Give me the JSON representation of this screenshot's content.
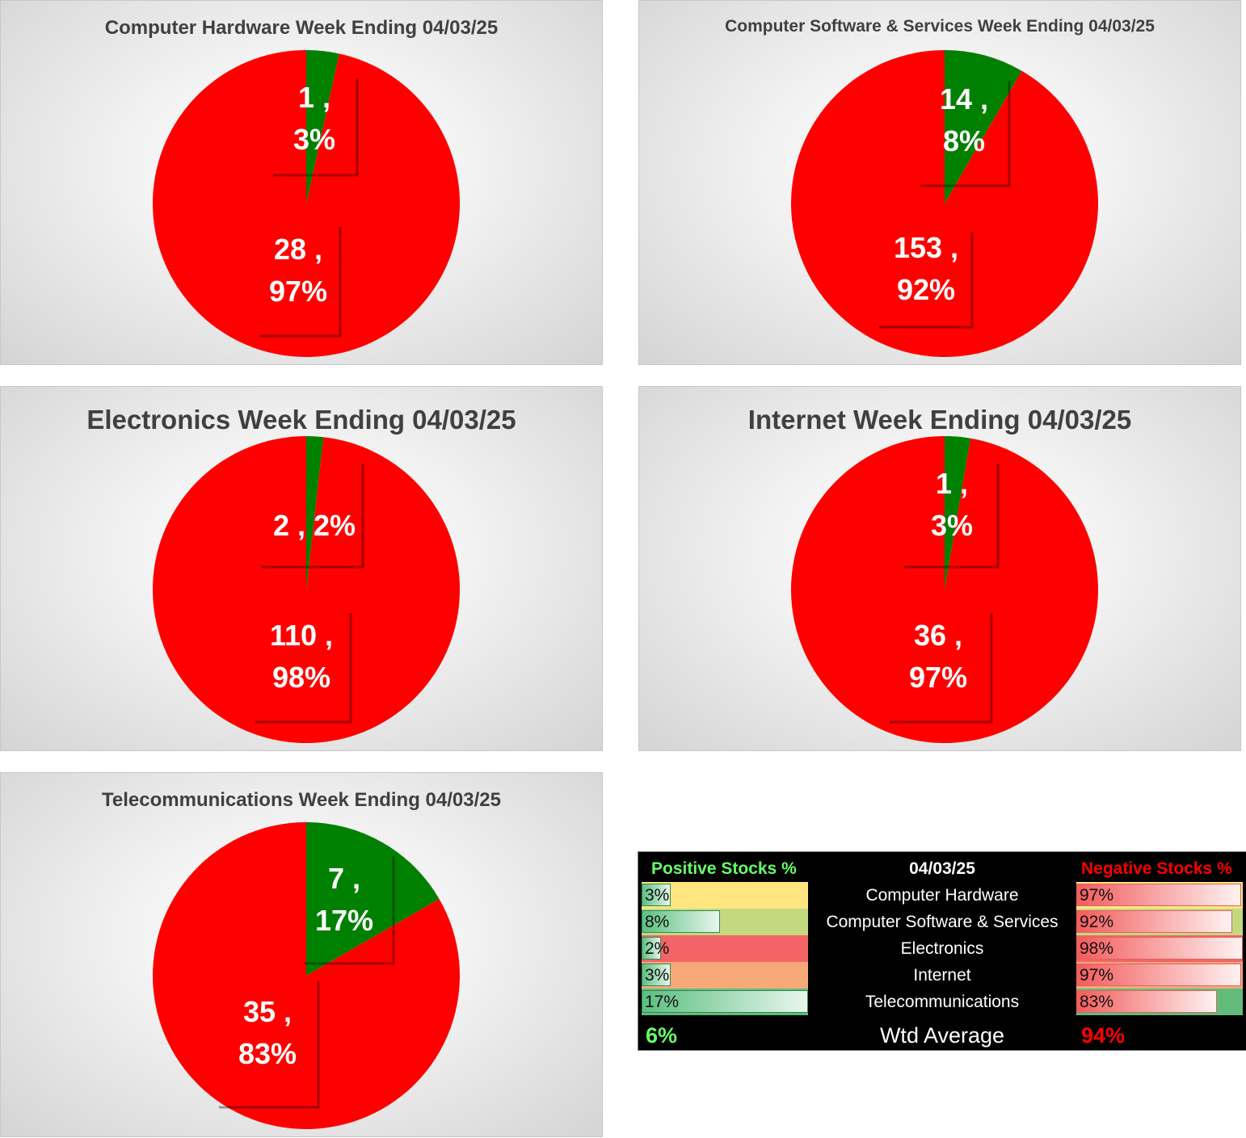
{
  "chart_data": [
    {
      "type": "pie",
      "title": "Computer Hardware Week Ending 04/03/25",
      "slices": [
        {
          "label": "Positive",
          "value": 1,
          "percent": "3%",
          "color": "#008000"
        },
        {
          "label": "Negative",
          "value": 28,
          "percent": "97%",
          "color": "#ff0000"
        }
      ],
      "data_labels": [
        "1 ,|3%",
        "28 ,|97%"
      ]
    },
    {
      "type": "pie",
      "title": "Computer Software & Services Week Ending 04/03/25",
      "slices": [
        {
          "label": "Positive",
          "value": 14,
          "percent": "8%",
          "color": "#008000"
        },
        {
          "label": "Negative",
          "value": 153,
          "percent": "92%",
          "color": "#ff0000"
        }
      ],
      "data_labels": [
        "14 ,|8%",
        "153 ,|92%"
      ]
    },
    {
      "type": "pie",
      "title": "Electronics Week Ending 04/03/25",
      "slices": [
        {
          "label": "Positive",
          "value": 2,
          "percent": "2%",
          "color": "#008000"
        },
        {
          "label": "Negative",
          "value": 110,
          "percent": "98%",
          "color": "#ff0000"
        }
      ],
      "data_labels": [
        "2 , 2%",
        "110 ,|98%"
      ]
    },
    {
      "type": "pie",
      "title": "Internet Week Ending 04/03/25",
      "slices": [
        {
          "label": "Positive",
          "value": 1,
          "percent": "3%",
          "color": "#008000"
        },
        {
          "label": "Negative",
          "value": 36,
          "percent": "97%",
          "color": "#ff0000"
        }
      ],
      "data_labels": [
        "1 ,|3%",
        "36 ,|97%"
      ]
    },
    {
      "type": "pie",
      "title": "Telecommunications Week Ending 04/03/25",
      "slices": [
        {
          "label": "Positive",
          "value": 7,
          "percent": "17%",
          "color": "#008000"
        },
        {
          "label": "Negative",
          "value": 35,
          "percent": "83%",
          "color": "#ff0000"
        }
      ],
      "data_labels": [
        "7 ,|17%",
        "35 ,|83%"
      ]
    },
    {
      "type": "table",
      "header": {
        "positive": "Positive Stocks %",
        "date": "04/03/25",
        "negative": "Negative Stocks %"
      },
      "rows": [
        {
          "category": "Computer Hardware",
          "positive": 3,
          "positive_text": "3%",
          "negative": 97,
          "negative_text": "97%",
          "row_color": "#ffe680"
        },
        {
          "category": "Computer Software & Services",
          "positive": 8,
          "positive_text": "8%",
          "negative": 92,
          "negative_text": "92%",
          "row_color": "#c4d97f"
        },
        {
          "category": "Electronics",
          "positive": 2,
          "positive_text": "2%",
          "negative": 98,
          "negative_text": "98%",
          "row_color": "#f26467"
        },
        {
          "category": "Internet",
          "positive": 3,
          "positive_text": "3%",
          "negative": 97,
          "negative_text": "97%",
          "row_color": "#f7a978"
        },
        {
          "category": "Telecommunications",
          "positive": 17,
          "positive_text": "17%",
          "negative": 83,
          "negative_text": "83%",
          "row_color": "#62bb7b"
        }
      ],
      "footer": {
        "positive": "6%",
        "label": "Wtd Average",
        "negative": "94%"
      }
    }
  ],
  "colors": {
    "positive": "#008000",
    "negative": "#ff0000",
    "pos_header": "#66ff66",
    "neg_header": "#ff0000",
    "title": "#404040"
  }
}
